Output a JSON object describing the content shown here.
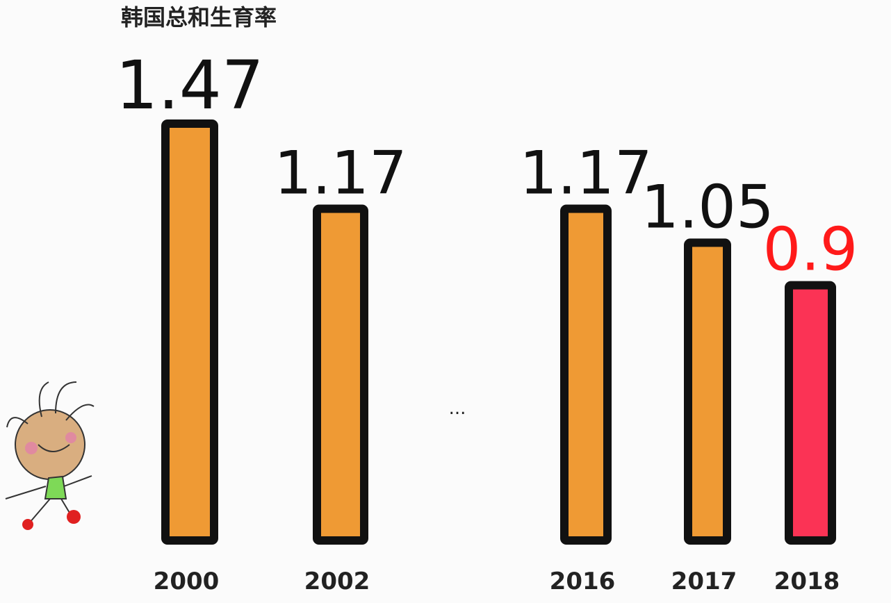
{
  "chart_data": {
    "type": "bar",
    "title": "韩国总和生育率",
    "categories": [
      "2000",
      "2002",
      "2016",
      "2017",
      "2018"
    ],
    "values": [
      1.47,
      1.17,
      1.17,
      1.05,
      0.9
    ],
    "colors": [
      "#ef9a34",
      "#ef9a34",
      "#ef9a34",
      "#ef9a34",
      "#fb3355"
    ],
    "label_colors": [
      "#111111",
      "#111111",
      "#111111",
      "#111111",
      "#ff1a1a"
    ],
    "annotation": "..."
  }
}
